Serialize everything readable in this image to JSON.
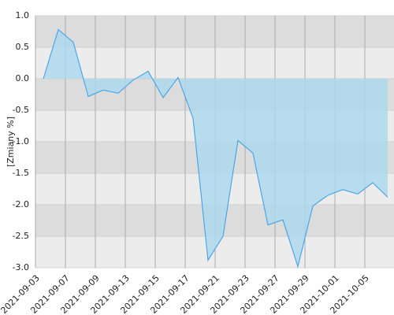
{
  "chart_data": {
    "type": "area",
    "y_label": "[Zmiany %]",
    "categories": [
      "2021-09-03",
      null,
      "2021-09-07",
      null,
      "2021-09-09",
      null,
      "2021-09-13",
      null,
      "2021-09-15",
      null,
      "2021-09-17",
      null,
      "2021-09-21",
      null,
      "2021-09-23",
      null,
      "2021-09-27",
      null,
      "2021-09-29",
      null,
      "2021-10-01",
      null,
      "2021-10-05",
      null
    ],
    "values": [
      0,
      0.78,
      0.58,
      -0.28,
      -0.18,
      -0.23,
      -0.02,
      0.12,
      -0.3,
      0.02,
      -0.63,
      -2.88,
      -2.5,
      -0.98,
      -1.18,
      -2.32,
      -2.24,
      -2.98,
      -2.02,
      -1.85,
      -1.76,
      -1.83,
      -1.65,
      -1.88
    ],
    "color": "#4da6e6",
    "fill": "#a9d8ef",
    "ylim": [
      -3,
      1
    ],
    "yticks": [
      {
        "value": -3,
        "label": "-3.0"
      },
      {
        "value": -2.5,
        "label": "-2.5"
      },
      {
        "value": -2,
        "label": "-2.0"
      },
      {
        "value": -1.5,
        "label": "-1.5"
      },
      {
        "value": -1,
        "label": "-1.0"
      },
      {
        "value": -0.5,
        "label": "-0.5"
      },
      {
        "value": 0,
        "label": "0.0"
      },
      {
        "value": 0.5,
        "label": "0.5"
      },
      {
        "value": 1,
        "label": "1.0"
      }
    ],
    "grid": true
  }
}
